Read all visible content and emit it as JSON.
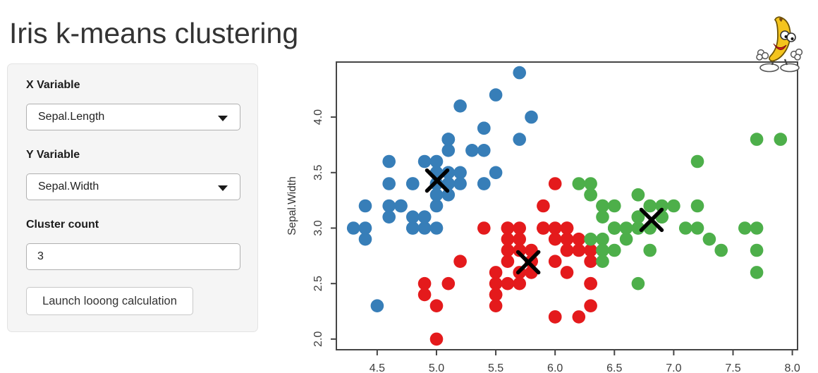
{
  "app": {
    "title": "Iris k-means clustering"
  },
  "sidebar": {
    "x_variable": {
      "label": "X Variable",
      "value": "Sepal.Length"
    },
    "y_variable": {
      "label": "Y Variable",
      "value": "Sepal.Width"
    },
    "cluster_count": {
      "label": "Cluster count",
      "value": "3"
    },
    "launch_button_label": "Launch looong calculation"
  },
  "icons": {
    "select_caret": "chevron-down",
    "mascot": "dancing-banana"
  },
  "chart_data": {
    "type": "scatter",
    "ylabel": "Sepal.Width",
    "x_ticks": [
      4.5,
      5.0,
      5.5,
      6.0,
      6.5,
      7.0,
      7.5,
      8.0
    ],
    "y_ticks": [
      2.0,
      2.5,
      3.0,
      3.5,
      4.0
    ],
    "xlim": [
      4.156,
      8.044
    ],
    "ylim": [
      1.904,
      4.496
    ],
    "grid": false,
    "legend": "none",
    "series": [
      {
        "name": "cluster-1-blue",
        "color": "#377EB8",
        "points": [
          [
            5.1,
            3.5
          ],
          [
            4.9,
            3.0
          ],
          [
            4.7,
            3.2
          ],
          [
            4.6,
            3.1
          ],
          [
            5.0,
            3.6
          ],
          [
            5.4,
            3.9
          ],
          [
            4.6,
            3.4
          ],
          [
            5.0,
            3.4
          ],
          [
            4.4,
            2.9
          ],
          [
            4.9,
            3.1
          ],
          [
            5.4,
            3.7
          ],
          [
            4.8,
            3.4
          ],
          [
            4.8,
            3.0
          ],
          [
            4.3,
            3.0
          ],
          [
            5.8,
            4.0
          ],
          [
            5.7,
            4.4
          ],
          [
            5.4,
            3.9
          ],
          [
            5.1,
            3.5
          ],
          [
            5.7,
            3.8
          ],
          [
            5.1,
            3.8
          ],
          [
            5.4,
            3.4
          ],
          [
            5.1,
            3.7
          ],
          [
            4.6,
            3.6
          ],
          [
            5.1,
            3.3
          ],
          [
            4.8,
            3.4
          ],
          [
            5.0,
            3.0
          ],
          [
            5.0,
            3.4
          ],
          [
            5.2,
            3.5
          ],
          [
            5.2,
            3.4
          ],
          [
            4.7,
            3.2
          ],
          [
            4.8,
            3.1
          ],
          [
            5.4,
            3.4
          ],
          [
            5.2,
            4.1
          ],
          [
            5.5,
            4.2
          ],
          [
            4.9,
            3.1
          ],
          [
            5.0,
            3.2
          ],
          [
            5.5,
            3.5
          ],
          [
            4.9,
            3.6
          ],
          [
            4.4,
            3.0
          ],
          [
            5.1,
            3.4
          ],
          [
            5.0,
            3.5
          ],
          [
            4.5,
            2.3
          ],
          [
            4.4,
            3.2
          ],
          [
            5.0,
            3.5
          ],
          [
            5.1,
            3.8
          ],
          [
            4.8,
            3.0
          ],
          [
            5.1,
            3.8
          ],
          [
            4.6,
            3.2
          ],
          [
            5.3,
            3.7
          ],
          [
            5.0,
            3.3
          ]
        ]
      },
      {
        "name": "cluster-2-red",
        "color": "#E41A1C",
        "points": [
          [
            5.5,
            2.3
          ],
          [
            5.7,
            2.8
          ],
          [
            4.9,
            2.4
          ],
          [
            5.2,
            2.7
          ],
          [
            5.0,
            2.0
          ],
          [
            5.9,
            3.0
          ],
          [
            6.0,
            2.2
          ],
          [
            6.1,
            2.9
          ],
          [
            5.6,
            2.9
          ],
          [
            5.6,
            3.0
          ],
          [
            5.8,
            2.7
          ],
          [
            6.2,
            2.2
          ],
          [
            5.6,
            2.5
          ],
          [
            5.9,
            3.2
          ],
          [
            6.1,
            2.8
          ],
          [
            6.3,
            2.5
          ],
          [
            6.1,
            2.8
          ],
          [
            6.0,
            2.9
          ],
          [
            5.7,
            2.6
          ],
          [
            5.5,
            2.4
          ],
          [
            5.5,
            2.4
          ],
          [
            5.8,
            2.7
          ],
          [
            6.0,
            2.7
          ],
          [
            5.4,
            3.0
          ],
          [
            6.0,
            3.4
          ],
          [
            6.3,
            2.3
          ],
          [
            5.6,
            3.0
          ],
          [
            5.5,
            2.5
          ],
          [
            5.5,
            2.6
          ],
          [
            6.1,
            3.0
          ],
          [
            5.8,
            2.6
          ],
          [
            5.0,
            2.3
          ],
          [
            5.6,
            2.7
          ],
          [
            5.7,
            3.0
          ],
          [
            5.7,
            2.9
          ],
          [
            6.2,
            2.9
          ],
          [
            5.1,
            2.5
          ],
          [
            5.7,
            2.8
          ],
          [
            5.8,
            2.7
          ],
          [
            4.9,
            2.5
          ],
          [
            5.7,
            2.5
          ],
          [
            5.8,
            2.8
          ],
          [
            6.0,
            2.2
          ],
          [
            5.6,
            2.8
          ],
          [
            6.3,
            2.7
          ],
          [
            6.2,
            2.8
          ],
          [
            6.1,
            3.0
          ],
          [
            6.3,
            2.8
          ],
          [
            6.1,
            2.6
          ],
          [
            6.0,
            3.0
          ],
          [
            5.8,
            2.7
          ],
          [
            6.3,
            2.5
          ],
          [
            5.9,
            3.0
          ]
        ]
      },
      {
        "name": "cluster-3-green",
        "color": "#4DAF4A",
        "points": [
          [
            7.0,
            3.2
          ],
          [
            6.4,
            3.2
          ],
          [
            6.9,
            3.1
          ],
          [
            6.5,
            2.8
          ],
          [
            6.3,
            3.3
          ],
          [
            6.6,
            2.9
          ],
          [
            6.7,
            3.1
          ],
          [
            6.4,
            2.9
          ],
          [
            6.6,
            3.0
          ],
          [
            6.8,
            2.8
          ],
          [
            6.7,
            3.0
          ],
          [
            6.7,
            3.1
          ],
          [
            6.3,
            3.3
          ],
          [
            7.1,
            3.0
          ],
          [
            6.3,
            2.9
          ],
          [
            6.5,
            3.0
          ],
          [
            7.6,
            3.0
          ],
          [
            7.3,
            2.9
          ],
          [
            6.7,
            2.5
          ],
          [
            7.2,
            3.6
          ],
          [
            6.5,
            3.2
          ],
          [
            6.4,
            2.7
          ],
          [
            6.8,
            3.0
          ],
          [
            6.4,
            3.2
          ],
          [
            6.5,
            3.0
          ],
          [
            7.7,
            3.8
          ],
          [
            7.7,
            2.6
          ],
          [
            6.9,
            3.2
          ],
          [
            7.7,
            2.8
          ],
          [
            6.7,
            3.3
          ],
          [
            7.2,
            3.2
          ],
          [
            6.4,
            2.8
          ],
          [
            7.2,
            3.0
          ],
          [
            7.4,
            2.8
          ],
          [
            7.9,
            3.8
          ],
          [
            6.4,
            2.8
          ],
          [
            7.7,
            3.0
          ],
          [
            6.3,
            3.4
          ],
          [
            6.4,
            3.1
          ],
          [
            6.9,
            3.1
          ],
          [
            6.7,
            3.1
          ],
          [
            6.9,
            3.1
          ],
          [
            6.8,
            3.2
          ],
          [
            6.7,
            3.3
          ],
          [
            6.7,
            3.0
          ],
          [
            6.5,
            3.0
          ],
          [
            6.2,
            3.4
          ]
        ]
      }
    ],
    "centers": {
      "marker": "x",
      "color": "#000000",
      "points": [
        [
          5.006,
          3.428
        ],
        [
          5.774,
          2.692
        ],
        [
          6.813,
          3.074
        ]
      ]
    }
  }
}
